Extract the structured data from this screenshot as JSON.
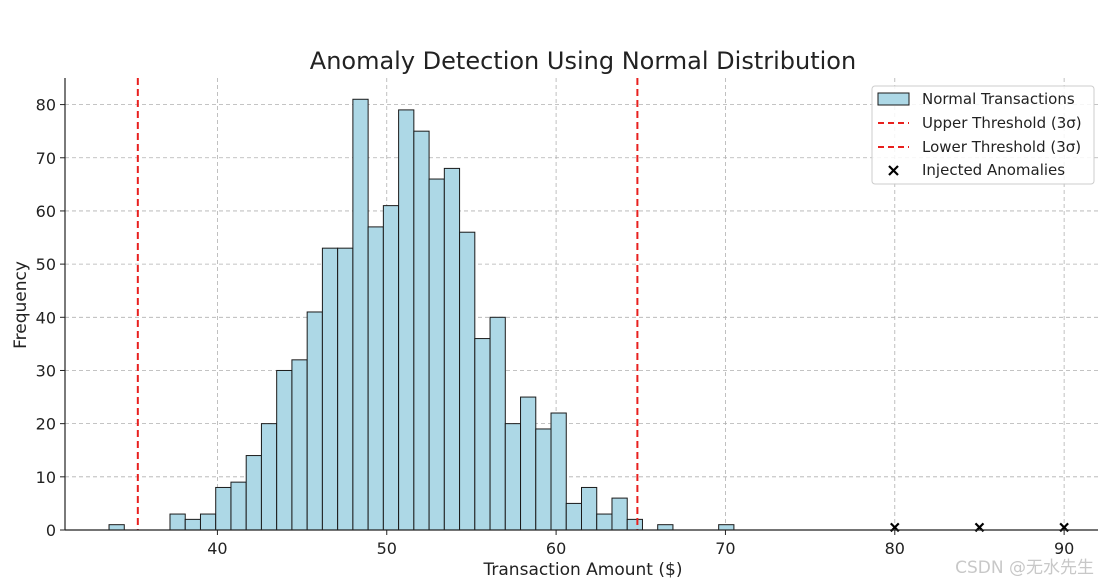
{
  "watermark": "CSDN @无水先生",
  "chart_data": {
    "type": "bar",
    "title": "Anomaly Detection Using Normal Distribution",
    "xlabel": "Transaction Amount ($)",
    "ylabel": "Frequency",
    "xlim": [
      31,
      92
    ],
    "ylim": [
      0,
      85
    ],
    "xticks": [
      40,
      50,
      60,
      70,
      80,
      90
    ],
    "yticks": [
      0,
      10,
      20,
      30,
      40,
      50,
      60,
      70,
      80
    ],
    "grid": true,
    "legend_position": "top-right",
    "histogram": {
      "name": "Normal Transactions",
      "color": "#add8e6",
      "edge_color": "#1a1a1a",
      "bin_start": 33.6,
      "bin_width": 0.9,
      "counts": [
        1,
        0,
        0,
        0,
        3,
        2,
        3,
        8,
        9,
        14,
        20,
        30,
        32,
        41,
        53,
        53,
        81,
        57,
        61,
        79,
        75,
        66,
        68,
        56,
        36,
        40,
        20,
        25,
        19,
        22,
        5,
        8,
        3,
        6,
        2,
        0,
        1,
        0,
        0,
        0,
        1
      ]
    },
    "thresholds": [
      {
        "name": "Upper Threshold (3σ)",
        "x": 64.8,
        "color": "#e8201e"
      },
      {
        "name": "Lower Threshold (3σ)",
        "x": 35.3,
        "color": "#e8201e"
      }
    ],
    "anomalies": {
      "name": "Injected Anomalies",
      "color": "#000000",
      "points": [
        {
          "x": 80,
          "y": 0.5
        },
        {
          "x": 85,
          "y": 0.5
        },
        {
          "x": 90,
          "y": 0.5
        }
      ]
    }
  }
}
